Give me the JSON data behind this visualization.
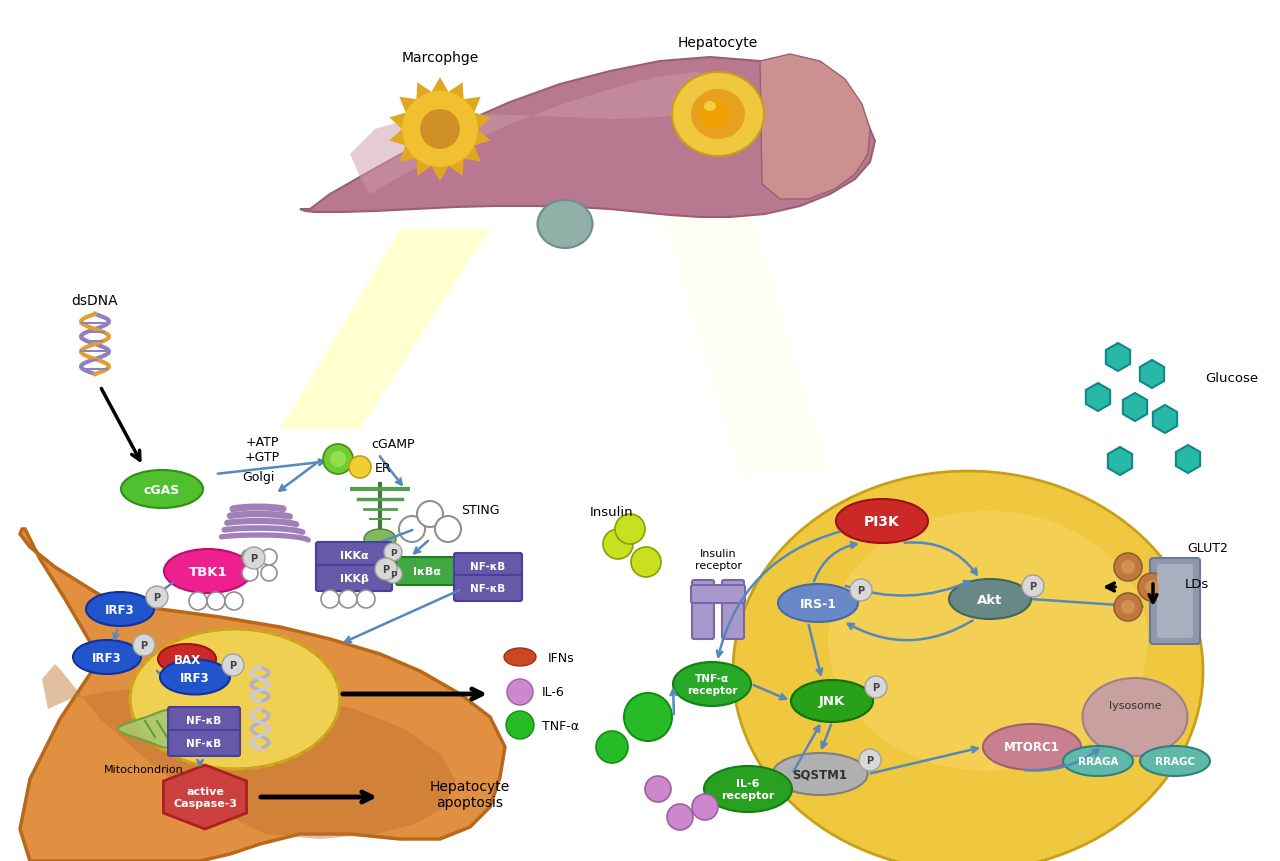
{
  "background": "#ffffff",
  "labels": {
    "macrophage": "Marcophge",
    "hepatocyte": "Hepatocyte",
    "dsDNA": "dsDNA",
    "cGAS": "cGAS",
    "atp_gtp": "+ATP\n+GTP",
    "cGAMP": "cGAMP",
    "golgi": "Golgi",
    "er": "ER",
    "sting": "STING",
    "tbk1": "TBK1",
    "ikkalpha": "IKKα",
    "ikkbeta": "IKKβ",
    "irf3": "IRF3",
    "bax": "BAX",
    "nfkb": "NF-κB",
    "ikbalpha": "IκBα",
    "mitochondrion": "Mitochondrion",
    "active_caspase": "active\nCaspase-3",
    "hepatocyte_apoptosis": "Hepatocyte\napoptosis",
    "ifns": "IFNs",
    "il6": "IL-6",
    "tnfa": "TNF-α",
    "insulin": "Insulin",
    "insulin_receptor": "Insulin\nreceptor",
    "irs1": "IRS-1",
    "pi3k": "PI3K",
    "akt": "Akt",
    "glut2": "GLUT2",
    "glucose": "Glucose",
    "tnfa_receptor": "TNF-α\nreceptor",
    "jnk": "JNK",
    "sqstm1": "SQSTM1",
    "mtorc1": "MTORC1",
    "rraga": "RRAGA",
    "rragc": "RRAGC",
    "lysosome": "lysosome",
    "lds": "LDs",
    "il6_receptor": "IL-6\nreceptor",
    "p": "P"
  },
  "colors": {
    "liver": "#B87890",
    "liver_edge": "#9A6070",
    "liver_light": "#CC9AAA",
    "gallbladder": "#90B0A8",
    "macrophage_body": "#F0C030",
    "macrophage_spike": "#E0A820",
    "macrophage_nucleus": "#D09028",
    "hepatocyte_outer": "#F0C840",
    "hepatocyte_mid": "#E8A020",
    "hepatocyte_nucleus": "#F0A000",
    "beam_color": "#FFFFA0",
    "left_cell": "#E09040",
    "left_cell_dark": "#C07030",
    "nucleus_fill": "#F0D050",
    "right_cell": "#F0C840",
    "dna_strand1": "#9080C0",
    "dna_strand2": "#E0A030",
    "cgas_fill": "#50C030",
    "arrow_blue": "#5588BB",
    "arrow_black": "#111111",
    "golgi_fill": "#A080B8",
    "er_fill": "#50A050",
    "sting_fill": "#ffffff",
    "tbk1_fill": "#EE2090",
    "ikk_fill": "#6858A8",
    "ikba_fill": "#40A840",
    "nfkb_fill": "#6858A8",
    "irf3_fill": "#2255CC",
    "bax_fill": "#CC2828",
    "mito_fill": "#A8C870",
    "casp_fill": "#CC4040",
    "ifns_fill": "#CC4820",
    "il6_fill": "#CC88CC",
    "tnfa_fill": "#28BB28",
    "irs1_fill": "#6888C8",
    "pi3k_fill": "#CC2828",
    "akt_fill": "#688888",
    "glut2_fill": "#8898A8",
    "glucose_fill": "#28B8A8",
    "lds_fill": "#C07840",
    "tnfr_fill": "#28A828",
    "jnk_fill": "#28A018",
    "sqstm1_fill": "#B0B0B0",
    "mtorc1_fill": "#C88090",
    "lysosome_fill": "#C8A0A0",
    "rraga_fill": "#60B8A8",
    "rragc_fill": "#60B8A8",
    "il6r_fill": "#28A020",
    "p_fill": "#D8D8D8"
  }
}
